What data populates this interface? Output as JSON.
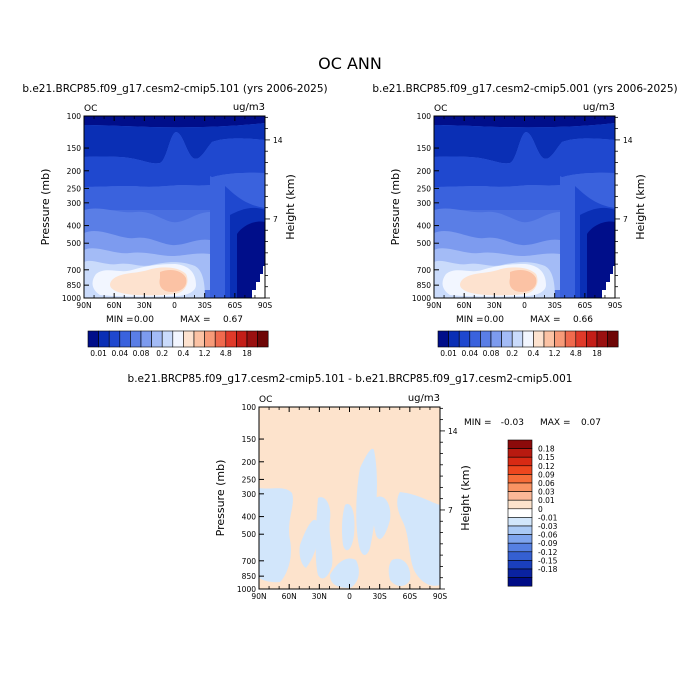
{
  "figure_title": "OC ANN",
  "chart_data": [
    {
      "type": "heatmap",
      "title": "b.e21.BRCP85.f09_g17.cesm2-cmip5.101 (yrs 2006-2025)",
      "var_label": "OC",
      "units": "ug/m3",
      "ylabel": "Pressure (mb)",
      "y2label": "Height (km)",
      "xticks": [
        "90N",
        "60N",
        "30N",
        "0",
        "30S",
        "60S",
        "90S"
      ],
      "yticks": [
        "100",
        "150",
        "200",
        "250",
        "300",
        "400",
        "500",
        "700",
        "850",
        "1000"
      ],
      "y2ticks": [
        "14",
        "7"
      ],
      "stats": {
        "min_label": "MIN =",
        "min": "0.00",
        "max_label": "MAX =",
        "max": "0.67"
      },
      "colorbar": {
        "levels": [
          "0.01",
          "0.04",
          "0.08",
          "0.2",
          "0.4",
          "1.2",
          "4.8",
          "18"
        ],
        "colors": [
          "#000e8a",
          "#0a2fb5",
          "#1f48cf",
          "#3a62dd",
          "#5a7ee6",
          "#7d9bef",
          "#a3bbf6",
          "#cadbfb",
          "#f2f6ff",
          "#fde2cf",
          "#fbc2a4",
          "#f79a78",
          "#f06a4e",
          "#e03a2a",
          "#c41e18",
          "#9a1010",
          "#6e0606"
        ]
      }
    },
    {
      "type": "heatmap",
      "title": "b.e21.BRCP85.f09_g17.cesm2-cmip5.001 (yrs 2006-2025)",
      "var_label": "OC",
      "units": "ug/m3",
      "ylabel": "Pressure (mb)",
      "y2label": "Height (km)",
      "xticks": [
        "90N",
        "60N",
        "30N",
        "0",
        "30S",
        "60S",
        "90S"
      ],
      "yticks": [
        "100",
        "150",
        "200",
        "250",
        "300",
        "400",
        "500",
        "700",
        "850",
        "1000"
      ],
      "y2ticks": [
        "14",
        "7"
      ],
      "stats": {
        "min_label": "MIN =",
        "min": "0.00",
        "max_label": "MAX =",
        "max": "0.66"
      },
      "colorbar": {
        "levels": [
          "0.01",
          "0.04",
          "0.08",
          "0.2",
          "0.4",
          "1.2",
          "4.8",
          "18"
        ],
        "colors": [
          "#000e8a",
          "#0a2fb5",
          "#1f48cf",
          "#3a62dd",
          "#5a7ee6",
          "#7d9bef",
          "#a3bbf6",
          "#cadbfb",
          "#f2f6ff",
          "#fde2cf",
          "#fbc2a4",
          "#f79a78",
          "#f06a4e",
          "#e03a2a",
          "#c41e18",
          "#9a1010",
          "#6e0606"
        ]
      }
    },
    {
      "type": "heatmap",
      "title": "b.e21.BRCP85.f09_g17.cesm2-cmip5.101 - b.e21.BRCP85.f09_g17.cesm2-cmip5.001",
      "var_label": "OC",
      "units": "ug/m3",
      "ylabel": "Pressure (mb)",
      "y2label": "Height (km)",
      "xticks": [
        "90N",
        "60N",
        "30N",
        "0",
        "30S",
        "60S",
        "90S"
      ],
      "yticks": [
        "100",
        "150",
        "200",
        "250",
        "300",
        "400",
        "500",
        "700",
        "850",
        "1000"
      ],
      "y2ticks": [
        "14",
        "7"
      ],
      "stats": {
        "min_label": "MIN =",
        "min": "-0.03",
        "max_label": "MAX =",
        "max": "0.07"
      },
      "colorbar": {
        "levels": [
          "0.18",
          "0.15",
          "0.12",
          "0.09",
          "0.06",
          "0.03",
          "0.01",
          "0",
          "-0.01",
          "-0.03",
          "-0.06",
          "-0.09",
          "-0.12",
          "-0.15",
          "-0.18"
        ],
        "colors": [
          "#8c0a0a",
          "#b81a10",
          "#d82a14",
          "#ee461e",
          "#f66c38",
          "#f99363",
          "#fbb898",
          "#fde3cc",
          "#ffffff",
          "#d2e6fb",
          "#aac9f5",
          "#7fa5ee",
          "#5680e2",
          "#3560d2",
          "#1a3fbd",
          "#0a22a0",
          "#000c86"
        ]
      }
    }
  ]
}
